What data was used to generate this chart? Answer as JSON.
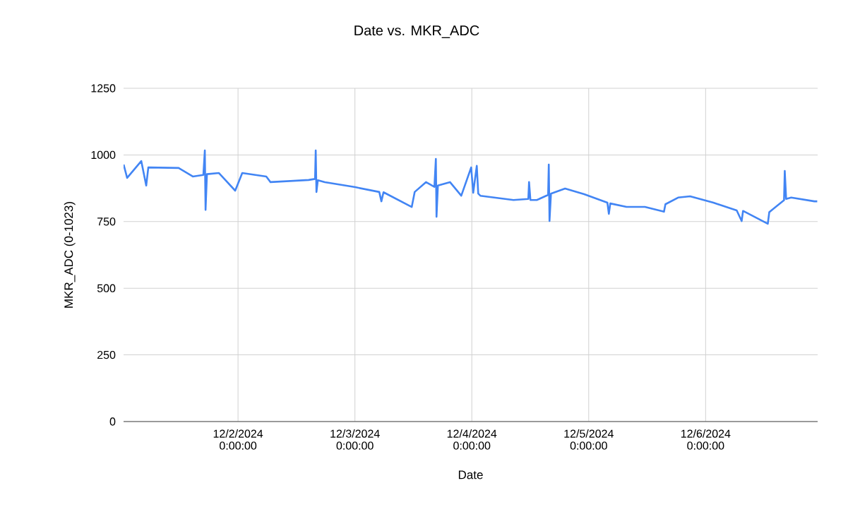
{
  "chart_data": {
    "type": "line",
    "title": "Date vs. MKR_ADC",
    "xlabel": "Date",
    "ylabel": "MKR_ADC (0-1023)",
    "x": [
      "2024-12-01T00:31",
      "2024-12-01T01:14",
      "2024-12-01T04:08",
      "2024-12-01T05:09",
      "2024-12-01T05:35",
      "2024-12-01T11:49",
      "2024-12-01T14:43",
      "2024-12-01T16:53",
      "2024-12-01T17:11",
      "2024-12-01T17:20",
      "2024-12-01T17:37",
      "2024-12-01T20:05",
      "2024-12-01T23:25",
      "2024-12-02T00:52",
      "2024-12-02T05:48",
      "2024-12-02T06:40",
      "2024-12-02T14:30",
      "2024-12-02T15:49",
      "2024-12-02T15:57",
      "2024-12-02T16:06",
      "2024-12-02T16:23",
      "2024-12-02T17:50",
      "2024-12-03T00:04",
      "2024-12-03T05:00",
      "2024-12-03T05:26",
      "2024-12-03T05:52",
      "2024-12-03T11:40",
      "2024-12-03T12:16",
      "2024-12-03T14:35",
      "2024-12-03T16:19",
      "2024-12-03T16:37",
      "2024-12-03T16:45",
      "2024-12-03T17:02",
      "2024-12-03T19:31",
      "2024-12-03T21:50",
      "2024-12-03T23:52",
      "2024-12-04T00:17",
      "2024-12-04T01:01",
      "2024-12-04T01:19",
      "2024-12-04T01:45",
      "2024-12-04T08:33",
      "2024-12-04T11:36",
      "2024-12-04T11:45",
      "2024-12-04T12:02",
      "2024-12-04T13:21",
      "2024-12-04T15:40",
      "2024-12-04T15:48",
      "2024-12-04T15:57",
      "2024-12-04T16:15",
      "2024-12-04T19:09",
      "2024-12-04T23:04",
      "2024-12-05T03:50",
      "2024-12-05T04:08",
      "2024-12-05T04:26",
      "2024-12-05T07:46",
      "2024-12-05T11:32",
      "2024-12-05T15:27",
      "2024-12-05T15:45",
      "2024-12-05T18:21",
      "2024-12-05T20:49",
      "2024-12-06T01:36",
      "2024-12-06T06:23",
      "2024-12-06T07:24",
      "2024-12-06T07:41",
      "2024-12-06T12:46",
      "2024-12-06T13:04",
      "2024-12-06T13:38",
      "2024-12-06T16:06",
      "2024-12-06T16:15",
      "2024-12-06T16:32",
      "2024-12-06T17:34",
      "2024-12-06T22:20",
      "2024-12-06T22:55"
    ],
    "series": [
      {
        "color": "#4285f4",
        "values": [
          964,
          914,
          977,
          885,
          953,
          951,
          919,
          925,
          1017,
          794,
          928,
          932,
          866,
          932,
          919,
          898,
          906,
          910,
          1017,
          861,
          905,
          898,
          879,
          861,
          826,
          860,
          805,
          861,
          898,
          880,
          985,
          768,
          885,
          898,
          847,
          953,
          858,
          959,
          855,
          847,
          831,
          835,
          898,
          831,
          831,
          850,
          964,
          752,
          855,
          874,
          853,
          821,
          779,
          818,
          805,
          805,
          787,
          815,
          840,
          845,
          821,
          792,
          752,
          790,
          742,
          785,
          794,
          830,
          940,
          835,
          840,
          826,
          826
        ]
      }
    ],
    "xlim": [
      "2024-12-01T00:30",
      "2024-12-06T23:00"
    ],
    "xticks": [
      {
        "value": "2024-12-02T00:00",
        "label": "12/2/2024 0:00:00"
      },
      {
        "value": "2024-12-03T00:00",
        "label": "12/3/2024 0:00:00"
      },
      {
        "value": "2024-12-04T00:00",
        "label": "12/4/2024 0:00:00"
      },
      {
        "value": "2024-12-05T00:00",
        "label": "12/5/2024 0:00:00"
      },
      {
        "value": "2024-12-06T00:00",
        "label": "12/6/2024 0:00:00"
      }
    ],
    "ylim": [
      0,
      1250
    ],
    "yticks": [
      0,
      250,
      500,
      750,
      1000,
      1250
    ],
    "grid": true,
    "marker": "none",
    "line_style": "solid"
  }
}
